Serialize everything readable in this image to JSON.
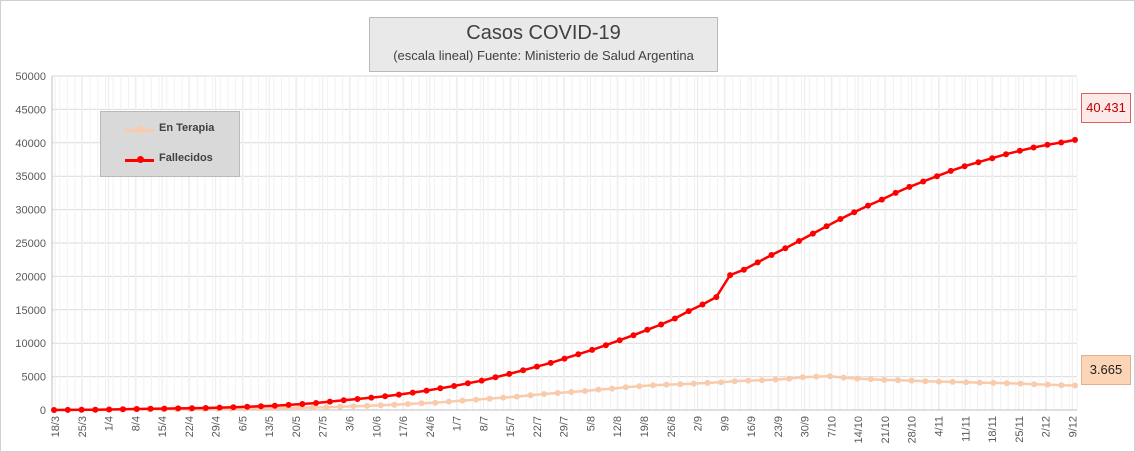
{
  "chart_data": {
    "type": "line",
    "title": "Casos COVID-19",
    "subtitle": "(escala lineal) Fuente: Ministerio de Salud Argentina",
    "xlabel": "",
    "ylabel": "",
    "ylim": [
      0,
      50000
    ],
    "yticks": [
      "50000",
      "45000",
      "40000",
      "35000",
      "30000",
      "25000",
      "20000",
      "15000",
      "10000",
      "5000",
      "0"
    ],
    "x_tick_labels": [
      "18/3",
      "25/3",
      "1/4",
      "8/4",
      "15/4",
      "22/4",
      "29/4",
      "6/5",
      "13/5",
      "20/5",
      "27/5",
      "3/6",
      "10/6",
      "17/6",
      "24/6",
      "1/7",
      "8/7",
      "15/7",
      "22/7",
      "29/7",
      "5/8",
      "12/8",
      "19/8",
      "26/8",
      "2/9",
      "9/9",
      "16/9",
      "23/9",
      "30/9",
      "7/10",
      "14/10",
      "21/10",
      "28/10",
      "4/11",
      "11/11",
      "18/11",
      "25/11",
      "2/12",
      "9/12"
    ],
    "x_start": "18/3",
    "x_end": "11/12",
    "grid": true,
    "legend_position": "top-left",
    "series": [
      {
        "name": "En Terapia",
        "color": "#f8cbad",
        "values": [
          0,
          20,
          30,
          50,
          60,
          80,
          100,
          100,
          120,
          140,
          150,
          160,
          180,
          200,
          220,
          250,
          280,
          300,
          330,
          380,
          420,
          480,
          550,
          620,
          700,
          800,
          900,
          1000,
          1100,
          1250,
          1400,
          1550,
          1700,
          1850,
          2000,
          2200,
          2400,
          2550,
          2700,
          2850,
          3050,
          3200,
          3400,
          3550,
          3700,
          3800,
          3850,
          3950,
          4050,
          4150,
          4300,
          4400,
          4450,
          4550,
          4700,
          4900,
          5000,
          5050,
          4850,
          4700,
          4600,
          4500,
          4450,
          4400,
          4300,
          4250,
          4200,
          4150,
          4100,
          4050,
          4000,
          3950,
          3850,
          3800,
          3700,
          3665
        ],
        "last_label": "3.665"
      },
      {
        "name": "Fallecidos",
        "color": "#ff0000",
        "values": [
          2,
          15,
          30,
          50,
          80,
          120,
          150,
          180,
          210,
          240,
          260,
          300,
          360,
          420,
          480,
          560,
          640,
          760,
          900,
          1050,
          1250,
          1450,
          1650,
          1850,
          2050,
          2300,
          2600,
          2900,
          3250,
          3600,
          4000,
          4400,
          4900,
          5400,
          5950,
          6500,
          7050,
          7700,
          8350,
          9000,
          9700,
          10450,
          11200,
          12000,
          12800,
          13700,
          14800,
          15800,
          16900,
          20200,
          21000,
          22100,
          23200,
          24200,
          25300,
          26400,
          27500,
          28600,
          29600,
          30600,
          31500,
          32500,
          33400,
          34200,
          35000,
          35800,
          36500,
          37100,
          37700,
          38300,
          38800,
          39300,
          39700,
          40050,
          40431
        ],
        "last_label": "40.431"
      }
    ]
  }
}
